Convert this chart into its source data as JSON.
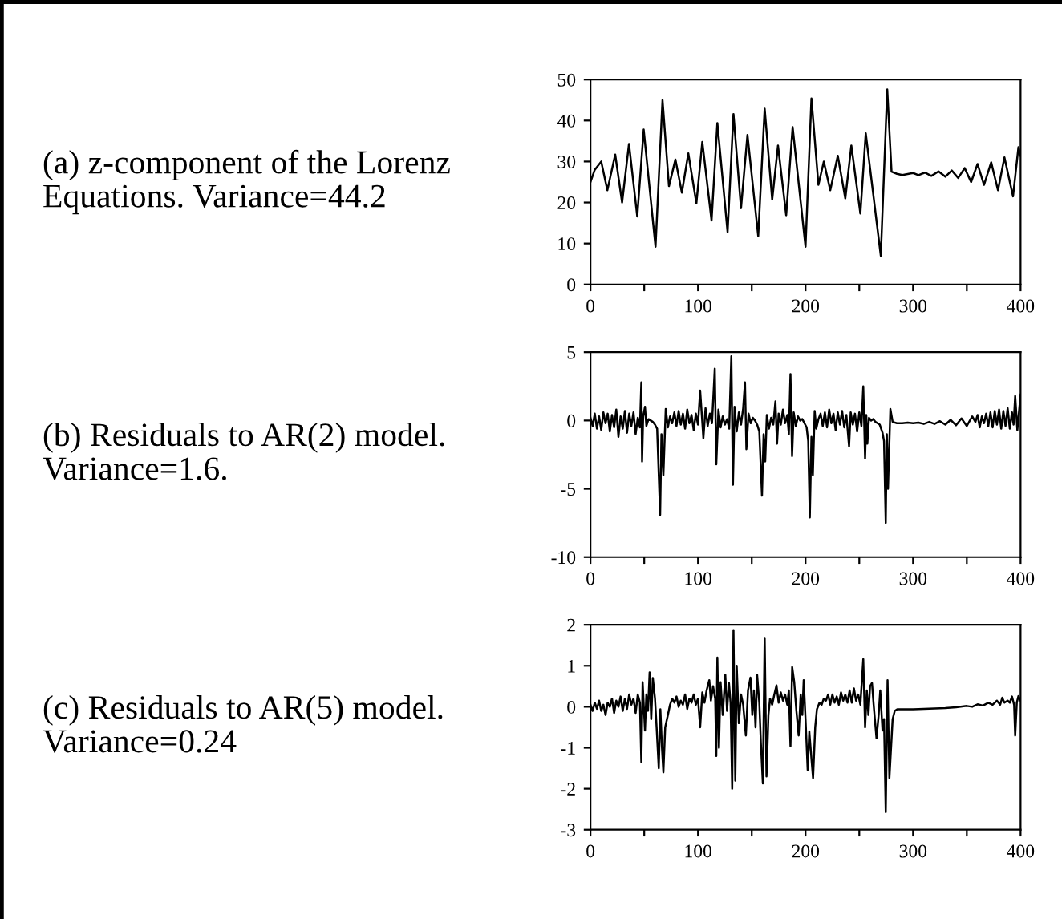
{
  "chart_data": [
    {
      "type": "line",
      "title": "(a) z-component of the Lorenz Equations. Variance=44.2",
      "xlim": [
        0,
        400
      ],
      "ylim": [
        0,
        50
      ],
      "xticks": [
        0,
        {
          "value": 50,
          "label": null
        },
        100,
        {
          "value": 150,
          "label": null
        },
        200,
        {
          "value": 250,
          "label": null
        },
        300,
        {
          "value": 350,
          "label": null
        },
        400
      ],
      "yticks": [
        0,
        10,
        20,
        30,
        40,
        50
      ],
      "series": [
        {
          "color": "#000000",
          "x": [
            0,
            4,
            10,
            15.7,
            23,
            29.4,
            35.8,
            43.5,
            49.5,
            60.5,
            67,
            73,
            79,
            85,
            91,
            98.5,
            104,
            112.6,
            118,
            127.5,
            133,
            140,
            146,
            156,
            162,
            169,
            174.4,
            182,
            188,
            200,
            205.5,
            212,
            217,
            223,
            230,
            237,
            242.6,
            251,
            256,
            270,
            276,
            280,
            285,
            290,
            300,
            305,
            311,
            317,
            323.7,
            330,
            336,
            342,
            348,
            354,
            360,
            366,
            372.7,
            379,
            385,
            393,
            398,
            400
          ],
          "values": [
            25,
            28,
            30,
            23,
            31.7,
            20,
            34.3,
            16.6,
            37.8,
            9.2,
            45,
            24,
            30.5,
            22.4,
            32,
            19.8,
            34.8,
            15.6,
            39.4,
            12.8,
            41.6,
            18.6,
            36.5,
            11.8,
            42.9,
            20.7,
            33.9,
            16.9,
            38.4,
            9.2,
            45.4,
            24.3,
            30,
            23,
            31.4,
            21,
            33.9,
            17.3,
            36.9,
            7,
            47.6,
            27.5,
            27,
            26.7,
            27.2,
            26.7,
            27.3,
            26.5,
            27.6,
            26.3,
            27.8,
            26,
            28.4,
            25,
            29.4,
            24.3,
            29.8,
            23,
            31,
            21.5,
            33.5,
            31.4
          ]
        }
      ]
    },
    {
      "type": "line",
      "title": "(b) Residuals to AR(2) model. Variance=1.6.",
      "xlim": [
        0,
        400
      ],
      "ylim": [
        -10,
        5
      ],
      "xticks": [
        0,
        {
          "value": 50,
          "label": null
        },
        100,
        {
          "value": 150,
          "label": null
        },
        200,
        {
          "value": 250,
          "label": null
        },
        300,
        {
          "value": 350,
          "label": null
        },
        400
      ],
      "yticks": [
        -10,
        -5,
        0,
        5
      ],
      "series": [
        {
          "color": "#000000",
          "x": [
            0,
            2,
            4,
            6,
            8,
            10,
            12,
            14,
            16,
            18,
            20,
            22,
            24,
            26,
            28,
            30,
            32,
            34,
            36,
            38,
            40,
            42,
            44,
            46,
            47.3,
            48,
            49,
            50.7,
            52,
            54,
            56,
            58,
            60,
            62,
            64.8,
            66,
            67.8,
            70,
            72,
            74,
            76,
            78,
            80,
            82,
            84,
            86,
            88,
            90,
            92,
            94,
            96,
            98,
            100,
            102,
            105,
            107,
            109,
            111,
            113,
            115.6,
            117,
            119,
            121,
            123,
            125,
            127,
            129,
            131,
            132.5,
            134,
            136,
            138,
            140,
            142,
            143.7,
            145,
            147,
            149,
            151,
            153,
            155,
            157,
            159.5,
            161,
            162.5,
            164,
            166,
            168,
            170,
            172,
            173.5,
            175,
            177,
            179,
            181,
            183,
            184.5,
            186,
            187.5,
            189,
            191,
            193,
            195,
            197,
            199,
            201,
            202.5,
            204,
            205.5,
            206.8,
            208.5,
            210,
            212,
            214,
            216,
            218,
            220,
            222,
            224,
            226,
            228,
            230,
            232,
            234,
            236,
            238,
            240.5,
            242,
            244,
            246,
            248,
            250,
            252,
            253.7,
            255.4,
            256.5,
            257.5,
            259,
            261,
            263,
            265,
            267,
            269,
            271.6,
            273,
            274.6,
            275.6,
            276.7,
            278.9,
            281,
            285,
            290,
            295,
            300,
            305,
            310,
            315,
            320,
            325,
            330,
            335,
            340,
            345,
            350,
            355,
            358,
            360,
            362,
            364,
            366,
            368,
            370,
            372,
            374,
            376,
            378,
            380,
            382,
            384,
            386,
            388,
            390,
            392,
            393.5,
            395,
            397,
            400
          ],
          "values": [
            0.2,
            -0.4,
            0.5,
            -0.6,
            0.3,
            -0.7,
            0.6,
            -0.2,
            0.5,
            -0.8,
            0.4,
            -0.5,
            0.8,
            -1.2,
            0.3,
            -0.6,
            0.7,
            -0.9,
            0.5,
            -0.4,
            0.6,
            -1.0,
            0.2,
            -0.5,
            2.8,
            -3.0,
            0.3,
            1.0,
            -0.4,
            0.1,
            0,
            -0.1,
            -0.3,
            -0.6,
            -6.9,
            -1.0,
            -4.0,
            0.85,
            -0.5,
            0.3,
            -0.2,
            0.6,
            -0.4,
            0.7,
            -0.3,
            0.5,
            -0.6,
            0.8,
            -0.2,
            0.4,
            -0.7,
            0.5,
            -0.3,
            2.2,
            -1.3,
            0.9,
            -0.4,
            0.5,
            -0.2,
            3.8,
            -3.2,
            0.8,
            -0.5,
            0.3,
            -0.3,
            0.1,
            -0.6,
            4.7,
            -4.7,
            1.0,
            -0.8,
            0.6,
            -0.3,
            0.9,
            2.8,
            -2.1,
            0.5,
            -0.2,
            0.2,
            0,
            -0.3,
            -0.8,
            -5.5,
            -1.0,
            -3.0,
            0.4,
            -0.6,
            0.2,
            -0.3,
            1.4,
            -1.7,
            0.5,
            -0.3,
            0.8,
            -0.2,
            0.4,
            -1.0,
            3.4,
            -2.6,
            0.6,
            -0.4,
            0.3,
            0,
            0.1,
            -0.2,
            -0.5,
            -1.5,
            -7.1,
            -1.2,
            -4.0,
            0.7,
            -0.6,
            0.1,
            0.5,
            -0.4,
            0.6,
            -0.5,
            0.8,
            -0.2,
            0.5,
            -0.7,
            0.6,
            -0.3,
            0.7,
            -0.5,
            0.4,
            -1.9,
            0.6,
            -0.3,
            0.5,
            -0.8,
            0.6,
            -0.4,
            2.5,
            -2.8,
            0.4,
            -1.7,
            0.2,
            0,
            0.1,
            -0.1,
            -0.2,
            -0.3,
            -0.9,
            -1.5,
            -7.5,
            -1.0,
            -5.0,
            0.85,
            -0.1,
            -0.2,
            -0.2,
            -0.15,
            -0.2,
            -0.15,
            -0.25,
            -0.1,
            -0.25,
            -0.05,
            -0.3,
            0.05,
            -0.35,
            0.15,
            -0.4,
            0.3,
            -0.1,
            0.4,
            -0.5,
            0.3,
            -0.2,
            0.5,
            -0.4,
            0.6,
            -0.5,
            0.7,
            -0.3,
            0.8,
            -0.6,
            0.7,
            -0.4,
            0.9,
            -0.6,
            0.6,
            -0.3,
            1.8,
            -0.7,
            1.9
          ]
        }
      ]
    },
    {
      "type": "line",
      "title": "(c) Residuals to AR(5) model. Variance=0.24",
      "xlim": [
        0,
        400
      ],
      "ylim": [
        -3,
        2
      ],
      "xticks": [
        0,
        {
          "value": 50,
          "label": null
        },
        100,
        {
          "value": 150,
          "label": null
        },
        200,
        {
          "value": 250,
          "label": null
        },
        300,
        {
          "value": 350,
          "label": null
        },
        400
      ],
      "yticks": [
        -3,
        -2,
        -1,
        0,
        1,
        2
      ],
      "series": [
        {
          "color": "#000000",
          "x": [
            0,
            2,
            4,
            6,
            8,
            10,
            12,
            14,
            16,
            18,
            20,
            22,
            24,
            26,
            28,
            30,
            32,
            34,
            36,
            38,
            40,
            42,
            44,
            46,
            47.3,
            48.5,
            50.7,
            52,
            53.5,
            55,
            56.5,
            58,
            60,
            61.5,
            63.5,
            65,
            66.5,
            67.8,
            69.5,
            72,
            74,
            76,
            78,
            80,
            82,
            84,
            86,
            88,
            90,
            92,
            94,
            96,
            98,
            100,
            102,
            104,
            106,
            108,
            110.5,
            112,
            114,
            116,
            117,
            118,
            119.5,
            121,
            123,
            125.4,
            127,
            128.8,
            130.3,
            131.8,
            133,
            134.7,
            136,
            138,
            140,
            142,
            144.5,
            146.5,
            148.8,
            150.5,
            152,
            153.5,
            155,
            157,
            158.5,
            160.3,
            162,
            163.7,
            165.5,
            167,
            169,
            171,
            173,
            175,
            177,
            179,
            181,
            183,
            184.5,
            186,
            187.6,
            189.5,
            191.5,
            193.6,
            195.5,
            197,
            198.3,
            200,
            202,
            203.5,
            205,
            207,
            209,
            210.6,
            213,
            215,
            217,
            219,
            221,
            223,
            225,
            227,
            229,
            231,
            233,
            235,
            237,
            239,
            241,
            243,
            245,
            247,
            249,
            251,
            253.7,
            255.4,
            257,
            258.5,
            260,
            261.8,
            263.5,
            266,
            268,
            269.5,
            271.6,
            273,
            274.6,
            276.3,
            278,
            281,
            283,
            285.3,
            290,
            300,
            310,
            320,
            330,
            340,
            350,
            355,
            360,
            365,
            370,
            374,
            378,
            381,
            383,
            385,
            388,
            390,
            392,
            394,
            395,
            396.5,
            398,
            400
          ],
          "values": [
            0.05,
            -0.1,
            0.1,
            -0.05,
            0.15,
            -0.1,
            0.05,
            -0.2,
            0.1,
            0,
            0.2,
            -0.15,
            0.15,
            0,
            0.25,
            -0.1,
            0.2,
            -0.05,
            0.3,
            0.05,
            0.2,
            -0.15,
            0.3,
            0.1,
            -1.35,
            0.6,
            -0.58,
            0.3,
            -0.1,
            0.84,
            -0.3,
            0.7,
            0.2,
            -0.5,
            -1.5,
            -0.06,
            -1.0,
            -1.6,
            -0.5,
            -0.2,
            0.05,
            0.2,
            0.1,
            0.25,
            0,
            0.15,
            0.05,
            0.3,
            -0.05,
            0.2,
            0.1,
            0.3,
            0.05,
            0.2,
            -0.5,
            0.35,
            0.1,
            0.4,
            0.65,
            0.15,
            0.5,
            0.2,
            -1.2,
            1.2,
            -1.0,
            0.6,
            -0.2,
            0.78,
            -0.1,
            0.58,
            0.1,
            -2.0,
            1.87,
            -1.8,
            1.0,
            -0.4,
            0.3,
            0.05,
            -0.7,
            0.4,
            0.71,
            -0.2,
            0.4,
            -0.5,
            0.78,
            0.1,
            -0.9,
            -1.87,
            1.68,
            -1.7,
            -0.2,
            0.2,
            0.05,
            0.3,
            0.52,
            0.1,
            0.35,
            0.15,
            0.3,
            0.05,
            0.4,
            -0.96,
            0.97,
            0.6,
            -0.1,
            -0.7,
            0.3,
            -0.2,
            0.65,
            -0.3,
            -1.54,
            -0.6,
            -1.1,
            -1.74,
            -0.5,
            -0.06,
            0.1,
            0.05,
            0.2,
            0.15,
            0.3,
            0.05,
            0.3,
            0.1,
            0.25,
            0.05,
            0.35,
            0.15,
            0.3,
            0.1,
            0.4,
            0.1,
            0.45,
            0.15,
            0.3,
            0.05,
            1.16,
            -0.5,
            0.4,
            -0.2,
            0.5,
            0.58,
            0,
            -0.77,
            -0.2,
            0.4,
            -0.58,
            -0.3,
            -2.57,
            0.65,
            -1.74,
            -0.3,
            -0.1,
            -0.06,
            -0.06,
            -0.06,
            -0.05,
            -0.04,
            -0.03,
            -0.01,
            0.02,
            0,
            0.06,
            0.03,
            0.1,
            0.05,
            0.15,
            0.05,
            0.22,
            0.1,
            0.15,
            0.1,
            0.25,
            0.05,
            -0.7,
            0.1,
            0.26,
            0.15
          ]
        }
      ]
    }
  ]
}
